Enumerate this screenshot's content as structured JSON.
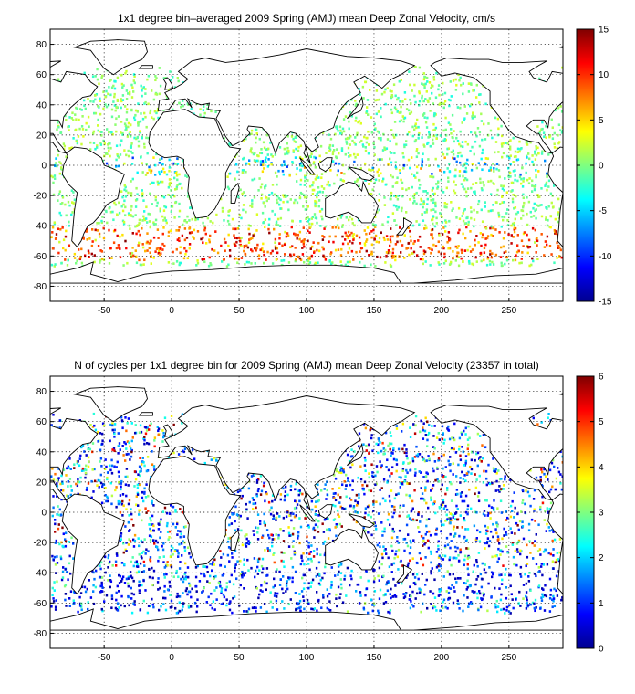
{
  "figure": {
    "panels": [
      {
        "title": "1x1 degree bin–averaged 2009 Spring (AMJ) mean Deep Zonal Velocity, cm/s",
        "colorbar": {
          "ticks": [
            "15",
            "10",
            "5",
            "0",
            "-5",
            "-10",
            "-15"
          ],
          "min": -15,
          "max": 15,
          "colormap": "jet"
        }
      },
      {
        "title": "N of cycles per 1x1 degree bin for 2009 Spring (AMJ) mean Deep Zonal Velocity (23357 in total)",
        "colorbar": {
          "ticks": [
            "6",
            "5",
            "4",
            "3",
            "2",
            "1",
            "0"
          ],
          "min": 0,
          "max": 6,
          "colormap": "jet"
        }
      }
    ]
  },
  "chart_data": [
    {
      "type": "heatmap",
      "title": "1x1 degree bin–averaged 2009 Spring (AMJ) mean Deep Zonal Velocity, cm/s",
      "xlim": [
        -90,
        290
      ],
      "ylim": [
        -90,
        90
      ],
      "xticks": [
        "-50",
        "0",
        "50",
        "100",
        "150",
        "200",
        "250"
      ],
      "yticks": [
        "80",
        "60",
        "40",
        "20",
        "0",
        "-20",
        "-40",
        "-60",
        "-80"
      ],
      "grid": true,
      "colorbar_range": [
        -15,
        15
      ],
      "colormap": "jet",
      "background": "coastline map (world outline)"
    },
    {
      "type": "heatmap",
      "title": "N of cycles per 1x1 degree bin for 2009 Spring (AMJ) mean Deep Zonal Velocity (23357 in total)",
      "xlim": [
        -90,
        290
      ],
      "ylim": [
        -90,
        90
      ],
      "xticks": [
        "-50",
        "0",
        "50",
        "100",
        "150",
        "200",
        "250"
      ],
      "yticks": [
        "80",
        "60",
        "40",
        "20",
        "0",
        "-20",
        "-40",
        "-60",
        "-80"
      ],
      "grid": true,
      "colorbar_range": [
        0,
        6
      ],
      "colormap": "jet",
      "total_cycles": 23357,
      "background": "coastline map (world outline)"
    }
  ]
}
